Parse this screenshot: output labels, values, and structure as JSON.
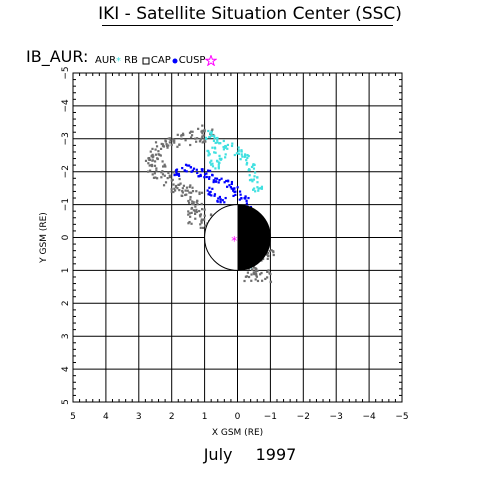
{
  "header": {
    "title": "IKI - Satellite Situation Center (SSC)"
  },
  "dataset_label": "IB_AUR:",
  "legend": [
    {
      "label": "AUR",
      "color": "#000000"
    },
    {
      "label": "RB",
      "color": "#40e0e0",
      "marker": "star"
    },
    {
      "label": "CAP",
      "color": "#000000",
      "marker": "square"
    },
    {
      "label": "CUSP",
      "color": "#0000ff",
      "marker": "dot"
    },
    {
      "label": "",
      "color": "#ff00ff",
      "marker": "star"
    }
  ],
  "footer": {
    "month": "July",
    "year": "1997"
  },
  "chart_data": {
    "type": "scatter",
    "title": "IKI - Satellite Situation Center (SSC)",
    "xlabel": "X GSM (RE)",
    "ylabel": "Y GSM (RE)",
    "x_ticks": [
      "5",
      "4",
      "3",
      "2",
      "1",
      "0",
      "−1",
      "−2",
      "−3",
      "−4",
      "−5"
    ],
    "y_ticks": [
      "−5",
      "−4",
      "−3",
      "−2",
      "−1",
      "0",
      "1",
      "2",
      "3",
      "4",
      "5"
    ],
    "xlim": [
      5,
      -5
    ],
    "ylim": [
      -5,
      5
    ],
    "grid": true,
    "earth": {
      "radius": 1,
      "night_side": "x<0"
    },
    "series": [
      {
        "name": "AUR",
        "color": "#6f6f6f",
        "region": "crescent",
        "x": [
          0.2,
          2.7
        ],
        "y": [
          -3.2,
          1.2
        ],
        "points": [
          [
            2.5,
            -2.5
          ],
          [
            2.3,
            -2.7
          ],
          [
            2.0,
            -2.9
          ],
          [
            1.6,
            -3.0
          ],
          [
            1.2,
            -3.1
          ],
          [
            0.9,
            -3.2
          ],
          [
            2.6,
            -2.2
          ],
          [
            2.4,
            -2.0
          ],
          [
            2.1,
            -1.8
          ],
          [
            1.8,
            -1.6
          ],
          [
            1.5,
            -1.4
          ],
          [
            1.3,
            -1.2
          ],
          [
            1.2,
            -0.9
          ],
          [
            1.3,
            -0.6
          ],
          [
            1.0,
            -0.5
          ],
          [
            0.7,
            -0.3
          ],
          [
            0.5,
            -0.1
          ],
          [
            0.3,
            0.2
          ],
          [
            -0.3,
            0.3
          ],
          [
            -0.5,
            0.6
          ],
          [
            -0.6,
            0.9
          ],
          [
            -0.9,
            0.5
          ],
          [
            -0.8,
            1.2
          ],
          [
            -0.4,
            1.1
          ],
          [
            0.1,
            -0.2
          ]
        ]
      },
      {
        "name": "RB",
        "color": "#40e0e0",
        "region": "dayside band",
        "x": [
          -0.6,
          1.1
        ],
        "y": [
          -3.2,
          0.9
        ],
        "points": [
          [
            0.9,
            -3.1
          ],
          [
            0.6,
            -3.0
          ],
          [
            0.3,
            -2.8
          ],
          [
            0.0,
            -2.6
          ],
          [
            -0.2,
            -2.4
          ],
          [
            -0.4,
            -2.1
          ],
          [
            -0.5,
            -1.8
          ],
          [
            -0.6,
            -1.5
          ],
          [
            0.8,
            -2.6
          ],
          [
            0.5,
            -2.4
          ],
          [
            0.7,
            -2.2
          ],
          [
            0.2,
            -0.1
          ],
          [
            -0.1,
            0.4
          ],
          [
            -0.3,
            0.8
          ]
        ]
      },
      {
        "name": "CUSP",
        "color": "#0000ff",
        "region": "inner band",
        "x": [
          -0.4,
          1.9
        ],
        "y": [
          -2.2,
          -0.4
        ],
        "points": [
          [
            1.8,
            -2.0
          ],
          [
            1.5,
            -2.1
          ],
          [
            1.2,
            -2.0
          ],
          [
            0.9,
            -1.9
          ],
          [
            0.6,
            -1.8
          ],
          [
            0.3,
            -1.6
          ],
          [
            0.0,
            -1.4
          ],
          [
            -0.2,
            -1.2
          ],
          [
            -0.3,
            -0.9
          ],
          [
            -0.4,
            -0.6
          ],
          [
            0.1,
            -0.5
          ],
          [
            0.2,
            -0.8
          ],
          [
            0.5,
            -1.1
          ],
          [
            0.8,
            -1.4
          ]
        ]
      },
      {
        "name": "",
        "color": "#ff00ff",
        "points": [
          [
            0.1,
            0.1
          ]
        ]
      }
    ]
  }
}
